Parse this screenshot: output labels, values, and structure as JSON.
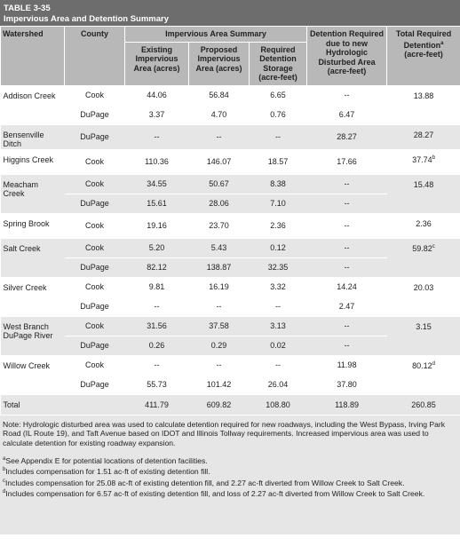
{
  "header": {
    "label": "TABLE 3-35",
    "title": "Impervious Area and Detention Summary"
  },
  "table": {
    "columns": {
      "watershed": "Watershed",
      "county": "County",
      "impervious": "Impervious Area Summary",
      "detention": "Detention Required due to new Hydrologic Disturbed Area (acre-feet)",
      "total": {
        "text": "Total Required Detention",
        "note": "a",
        "unit": "(acre-feet)"
      }
    },
    "subcolumns": [
      "Existing Impervious Area (acres)",
      "Proposed Impervious Area (acres)",
      "Required Detention Storage (acre-feet)"
    ],
    "groups": [
      {
        "watershed": "Addison Creek",
        "rows": [
          [
            "Cook",
            "44.06",
            "56.84",
            "6.65",
            "--"
          ],
          [
            "DuPage",
            "3.37",
            "4.70",
            "0.76",
            "6.47"
          ]
        ],
        "total": {
          "value": "13.88"
        }
      },
      {
        "watershed": "Bensenville Ditch",
        "rows": [
          [
            "DuPage",
            "--",
            "--",
            "--",
            "28.27"
          ]
        ],
        "total": {
          "value": "28.27"
        }
      },
      {
        "watershed": "Higgins Creek",
        "rows": [
          [
            "Cook",
            "110.36",
            "146.07",
            "18.57",
            "17.66"
          ]
        ],
        "total": {
          "value": "37.74",
          "note": "b"
        }
      },
      {
        "watershed": "Meacham Creek",
        "rows": [
          [
            "Cook",
            "34.55",
            "50.67",
            "8.38",
            "--"
          ],
          [
            "DuPage",
            "15.61",
            "28.06",
            "7.10",
            "--"
          ]
        ],
        "total": {
          "value": "15.48"
        }
      },
      {
        "watershed": "Spring Brook",
        "rows": [
          [
            "Cook",
            "19.16",
            "23.70",
            "2.36",
            "--"
          ]
        ],
        "total": {
          "value": "2.36"
        }
      },
      {
        "watershed": "Salt Creek",
        "rows": [
          [
            "Cook",
            "5.20",
            "5.43",
            "0.12",
            "--"
          ],
          [
            "DuPage",
            "82.12",
            "138.87",
            "32.35",
            "--"
          ]
        ],
        "total": {
          "value": "59.82",
          "note": "c"
        }
      },
      {
        "watershed": "Silver Creek",
        "rows": [
          [
            "Cook",
            "9.81",
            "16.19",
            "3.32",
            "14.24"
          ],
          [
            "DuPage",
            "--",
            "--",
            "--",
            "2.47"
          ]
        ],
        "total": {
          "value": "20.03"
        }
      },
      {
        "watershed": "West Branch DuPage River",
        "rows": [
          [
            "Cook",
            "31.56",
            "37.58",
            "3.13",
            "--"
          ],
          [
            "DuPage",
            "0.26",
            "0.29",
            "0.02",
            "--"
          ]
        ],
        "total": {
          "value": "3.15"
        }
      },
      {
        "watershed": "Willow Creek",
        "rows": [
          [
            "Cook",
            "--",
            "--",
            "--",
            "11.98"
          ],
          [
            "DuPage",
            "55.73",
            "101.42",
            "26.04",
            "37.80"
          ]
        ],
        "total": {
          "value": "80.12",
          "note": "d"
        }
      }
    ],
    "total_row": [
      "Total",
      "411.79",
      "609.82",
      "108.80",
      "118.89",
      "260.85"
    ]
  },
  "notes": {
    "text": "Note: Hydrologic disturbed area was used to calculate detention required for new roadways, including the West Bypass, Irving Park Road (IL Route 19), and Taft Avenue based on IDOT and Illinois Tollway requirements. Increased impervious area was used to calculate detention for existing roadway expansion.",
    "footnotes": [
      {
        "mark": "a",
        "text": "See Appendix E for potential locations of detention facilities."
      },
      {
        "mark": "b",
        "text": "Includes compensation for 1.51 ac-ft of existing detention fill."
      },
      {
        "mark": "c",
        "text": "Includes compensation for 25.08 ac-ft of existing detention fill, and 2.27 ac-ft diverted from Willow Creek to Salt Creek."
      },
      {
        "mark": "d",
        "text": "Includes compensation for 6.57 ac-ft of existing detention fill, and loss of 2.27 ac-ft diverted from Willow Creek to Salt Creek."
      }
    ]
  }
}
